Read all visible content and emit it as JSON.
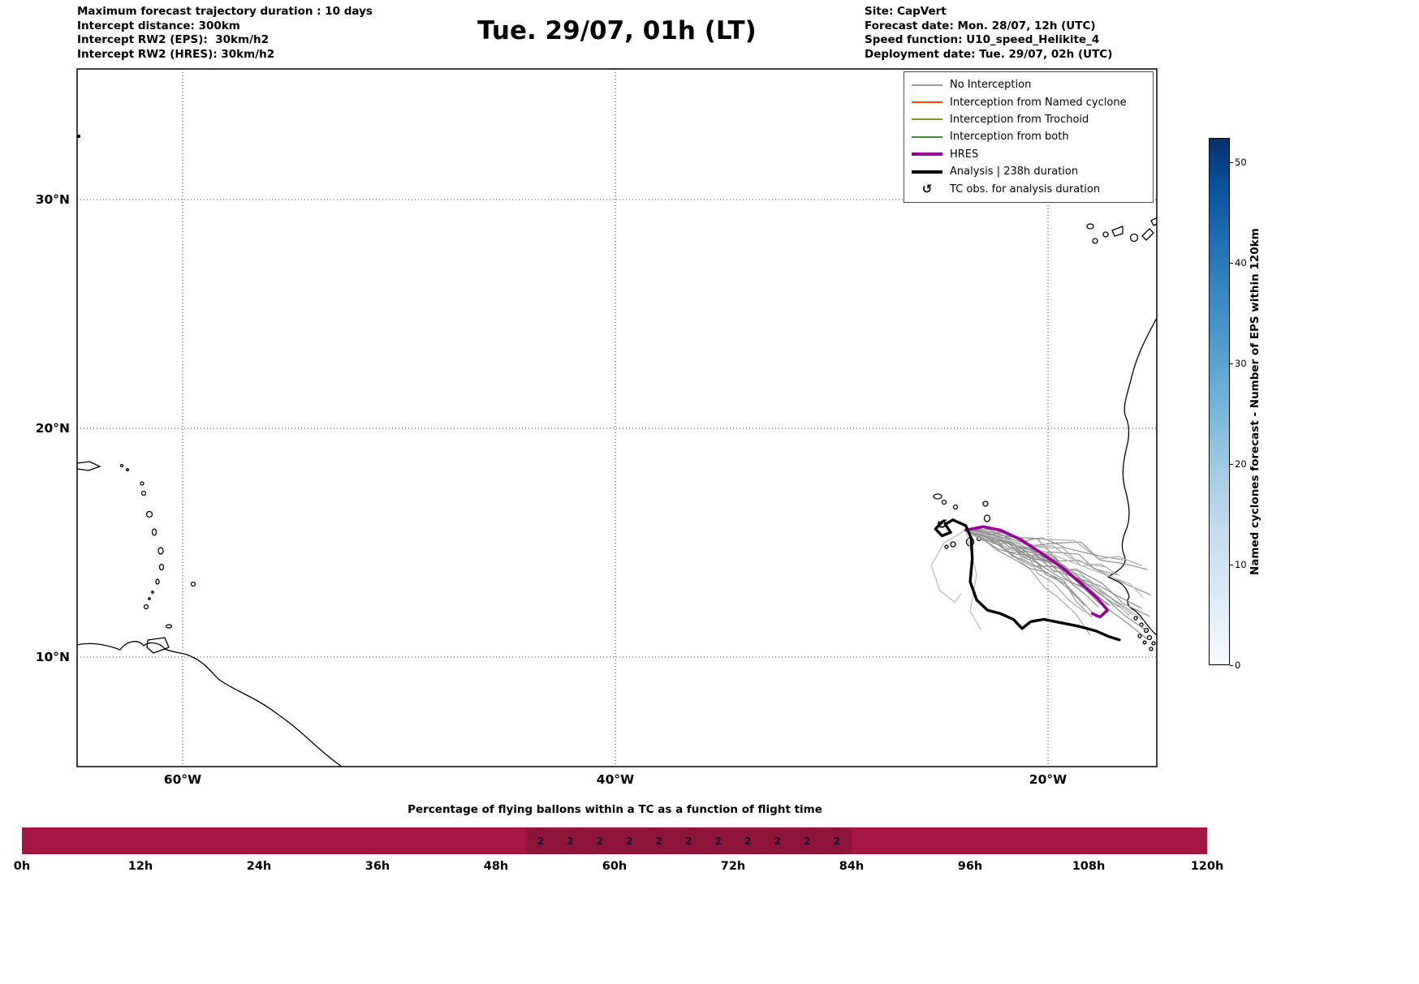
{
  "header": {
    "left_lines": [
      "Maximum forecast trajectory duration : 10 days",
      "Intercept distance: 300km",
      "Intercept RW2 (EPS):  30km/h2",
      "Intercept RW2 (HRES): 30km/h2"
    ],
    "title": "Tue. 29/07, 01h (LT)",
    "right_lines": [
      "Site: CapVert",
      "Forecast date: Mon. 28/07, 12h (UTC)",
      "Speed function: U10_speed_Helikite_4",
      "Deployment date: Tue. 29/07, 02h (UTC)"
    ]
  },
  "map": {
    "yticks": [
      {
        "label": "30°N",
        "lat": 30
      },
      {
        "label": "20°N",
        "lat": 20
      },
      {
        "label": "10°N",
        "lat": 10
      }
    ],
    "xticks": [
      {
        "label": "60°W",
        "lon": -60
      },
      {
        "label": "40°W",
        "lon": -40
      },
      {
        "label": "20°W",
        "lon": -20
      }
    ],
    "legend": {
      "items": [
        {
          "label": "No Interception",
          "type": "line",
          "color": "#999999",
          "thickness": 2
        },
        {
          "label": "Interception from Named cyclone",
          "type": "line",
          "color": "#ff4500",
          "thickness": 2
        },
        {
          "label": "Interception from Trochoid",
          "type": "line",
          "color": "#8f8f2a",
          "thickness": 2
        },
        {
          "label": "Interception from both",
          "type": "line",
          "color": "#3a8a3a",
          "thickness": 2
        },
        {
          "label": "HRES",
          "type": "line",
          "color": "#990099",
          "thickness": 4
        },
        {
          "label": "Analysis | 238h duration",
          "type": "line",
          "color": "#000000",
          "thickness": 4
        },
        {
          "label": "TC obs. for analysis duration",
          "type": "symbol",
          "symbol": "↺"
        }
      ]
    }
  },
  "colorbar": {
    "label": "Named cyclones forecast - Number of EPS within 120km",
    "ticks": [
      0,
      10,
      20,
      30,
      40,
      50
    ],
    "vmax": 52.4,
    "color_low": "#f7fbff",
    "color_high": "#08306b"
  },
  "bottom_chart": {
    "title": "Percentage of flying ballons within a TC as a function of flight time",
    "bar_color": "#a51742",
    "xticks": [
      {
        "label": "0h",
        "t": 0
      },
      {
        "label": "12h",
        "t": 12
      },
      {
        "label": "24h",
        "t": 24
      },
      {
        "label": "36h",
        "t": 36
      },
      {
        "label": "48h",
        "t": 48
      },
      {
        "label": "60h",
        "t": 60
      },
      {
        "label": "72h",
        "t": 72
      },
      {
        "label": "84h",
        "t": 84
      },
      {
        "label": "96h",
        "t": 96
      },
      {
        "label": "108h",
        "t": 108
      },
      {
        "label": "120h",
        "t": 120
      }
    ]
  },
  "chart_data": {
    "type": "line",
    "title": "Tue. 29/07, 01h (LT)",
    "map_extent": {
      "lon_min": -65,
      "lon_max": -15,
      "lat_min": 5,
      "lat_max": 36
    },
    "gridlines": {
      "lat": [
        10,
        20,
        30
      ],
      "lon": [
        -60,
        -40,
        -20
      ]
    },
    "trajectories": {
      "deployment_point": {
        "lon": -23.8,
        "lat": 15.55
      },
      "hres": [
        [
          -23.8,
          15.55
        ],
        [
          -23.0,
          15.7
        ],
        [
          -22.2,
          15.55
        ],
        [
          -21.3,
          15.15
        ],
        [
          -20.4,
          14.6
        ],
        [
          -19.4,
          13.95
        ],
        [
          -18.5,
          13.25
        ],
        [
          -17.7,
          12.55
        ],
        [
          -17.25,
          12.05
        ],
        [
          -17.6,
          11.75
        ],
        [
          -17.95,
          11.9
        ]
      ],
      "analysis": [
        [
          -24.9,
          15.9
        ],
        [
          -25.2,
          15.6
        ],
        [
          -24.9,
          15.3
        ],
        [
          -24.5,
          15.45
        ],
        [
          -24.75,
          15.8
        ],
        [
          -24.4,
          16.0
        ],
        [
          -23.8,
          15.75
        ],
        [
          -23.55,
          15.2
        ],
        [
          -23.5,
          14.3
        ],
        [
          -23.6,
          13.3
        ],
        [
          -23.3,
          12.5
        ],
        [
          -22.8,
          12.05
        ],
        [
          -22.2,
          11.9
        ],
        [
          -21.6,
          11.65
        ],
        [
          -21.2,
          11.25
        ],
        [
          -20.8,
          11.55
        ],
        [
          -20.2,
          11.65
        ],
        [
          -19.4,
          11.5
        ],
        [
          -18.6,
          11.35
        ],
        [
          -17.8,
          11.15
        ],
        [
          -17.2,
          10.9
        ],
        [
          -16.7,
          10.75
        ]
      ],
      "ensemble": {
        "count": 26,
        "end_lon_range": [
          -18.6,
          -15.3
        ],
        "end_lat_range": [
          10.7,
          14.3
        ]
      },
      "ensemble_outliers": [
        [
          [
            -23.8,
            15.55
          ],
          [
            -24.8,
            15.0
          ],
          [
            -25.4,
            14.0
          ],
          [
            -25.0,
            12.9
          ],
          [
            -24.3,
            12.4
          ],
          [
            -24.0,
            12.8
          ]
        ],
        [
          [
            -23.8,
            15.55
          ],
          [
            -23.3,
            13.6
          ],
          [
            -23.6,
            12.0
          ],
          [
            -23.1,
            11.2
          ]
        ],
        [
          [
            -23.8,
            15.55
          ],
          [
            -21.0,
            14.9
          ],
          [
            -18.2,
            13.9
          ],
          [
            -16.2,
            13.2
          ],
          [
            -15.6,
            12.6
          ]
        ]
      ],
      "tc_obs_points": [
        [
          -24.9,
          15.8
        ]
      ]
    },
    "bottom_bar": {
      "type": "bar",
      "x_unit": "hours",
      "x_range": [
        0,
        120
      ],
      "bar_percent": 100,
      "tc_band_hours": [
        51,
        84
      ],
      "bin_labels": [
        {
          "hour": 52.5,
          "value": 2
        },
        {
          "hour": 55.5,
          "value": 2
        },
        {
          "hour": 58.5,
          "value": 2
        },
        {
          "hour": 61.5,
          "value": 2
        },
        {
          "hour": 64.5,
          "value": 2
        },
        {
          "hour": 67.5,
          "value": 2
        },
        {
          "hour": 70.5,
          "value": 2
        },
        {
          "hour": 73.5,
          "value": 2
        },
        {
          "hour": 76.5,
          "value": 2
        },
        {
          "hour": 79.5,
          "value": 2
        },
        {
          "hour": 82.5,
          "value": 2
        }
      ]
    }
  }
}
